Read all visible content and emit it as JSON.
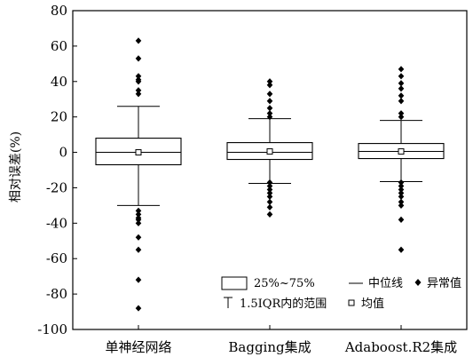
{
  "chart_data": {
    "type": "box",
    "ylabel": "相对误差(%)",
    "ylim": [
      -100,
      80
    ],
    "yticks": [
      80,
      60,
      40,
      20,
      0,
      -20,
      -40,
      -60,
      -80,
      -100
    ],
    "grid": false,
    "groups": [
      {
        "label": "单神经网络",
        "q1": -7,
        "median": 0,
        "q3": 8,
        "whisker_low": -30,
        "whisker_high": 26,
        "mean": 0,
        "outliers": [
          63,
          53,
          43,
          41,
          40,
          35,
          33,
          -33,
          -35,
          -37,
          -38,
          -40,
          -48,
          -55,
          -72,
          -88
        ]
      },
      {
        "label": "Bagging集成",
        "q1": -4,
        "median": 0,
        "q3": 5.5,
        "whisker_low": -17.5,
        "whisker_high": 19,
        "mean": 0.5,
        "outliers": [
          40,
          38,
          33,
          29,
          25,
          22,
          20,
          -17,
          -19,
          -21,
          -23,
          -25,
          -28,
          -31,
          -35
        ]
      },
      {
        "label": "Adaboost.R2集成",
        "q1": -3.5,
        "median": 0.5,
        "q3": 5,
        "whisker_low": -16.5,
        "whisker_high": 18,
        "mean": 0.5,
        "outliers": [
          47,
          43,
          39,
          36,
          32,
          29,
          22,
          20,
          -17,
          -19,
          -21,
          -23,
          -25,
          -28,
          -30,
          -38,
          -55
        ]
      }
    ],
    "legend": {
      "placement": "bottom-right",
      "items": [
        {
          "key": "box",
          "label": "25%~75%"
        },
        {
          "key": "median",
          "label": "中位线"
        },
        {
          "key": "outlier",
          "label": "异常值"
        },
        {
          "key": "whisker",
          "label": "1.5IQR内的范围"
        },
        {
          "key": "mean",
          "label": "均值"
        }
      ]
    }
  }
}
